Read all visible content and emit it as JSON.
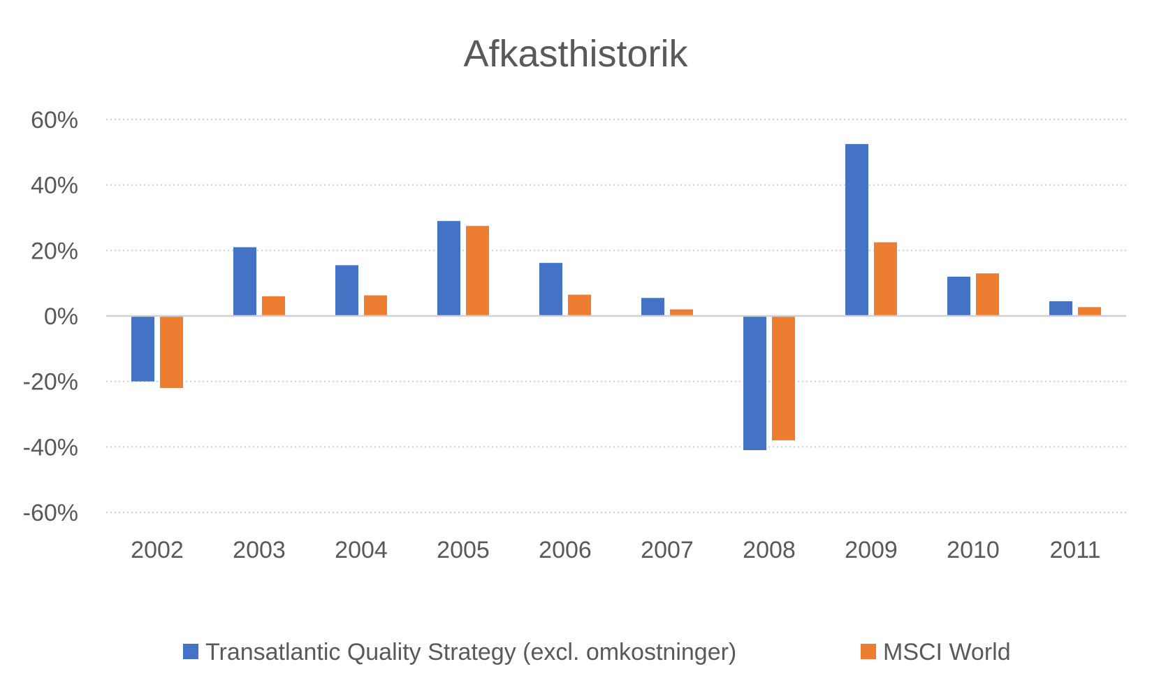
{
  "chart_data": {
    "type": "bar",
    "title": "Afkasthistorik",
    "xlabel": "",
    "ylabel": "",
    "categories": [
      "2002",
      "2003",
      "2004",
      "2005",
      "2006",
      "2007",
      "2008",
      "2009",
      "2010",
      "2011"
    ],
    "series": [
      {
        "name": "Transatlantic Quality Strategy (excl. omkostninger)",
        "color": "#4472C4",
        "values": [
          -20,
          21,
          15.5,
          29,
          16.2,
          5.5,
          -41,
          52.5,
          12,
          4.5
        ]
      },
      {
        "name": "MSCI World",
        "color": "#ED7D31",
        "values": [
          -22,
          6,
          6.3,
          27.5,
          6.5,
          2,
          -38,
          22.5,
          13,
          2.7
        ]
      }
    ],
    "ylim": [
      -60,
      60
    ],
    "yticks": [
      60,
      40,
      20,
      0,
      -20,
      -40,
      -60
    ],
    "ytick_labels": [
      "60%",
      "40%",
      "20%",
      "0%",
      "-20%",
      "-40%",
      "-60%"
    ],
    "grid": true,
    "legend_position": "bottom"
  }
}
